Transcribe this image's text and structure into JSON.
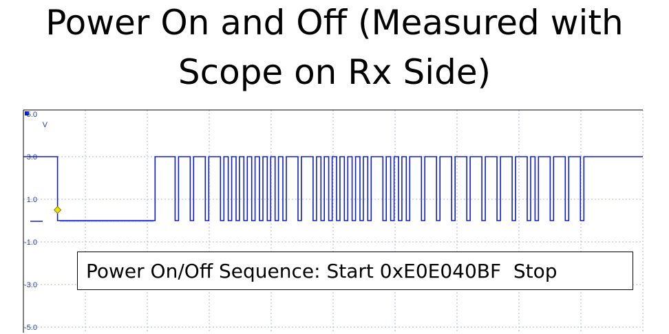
{
  "title": {
    "line1": "Power On and Off (Measured with",
    "line2": "Scope on Rx Side)"
  },
  "chart_data": {
    "type": "line",
    "title": "Power On and Off (Measured with Scope on Rx Side)",
    "ylabel_unit": "V",
    "yticks": [
      "5.0",
      "3.0",
      "1.0",
      "-1.0",
      "-3.0",
      "-5.0"
    ],
    "ylim": [
      -5.0,
      5.0
    ],
    "grid": true,
    "high_level": 3.0,
    "low_level": 0.0,
    "series": [
      {
        "color": "#0b1bd0",
        "segments_low": [
          [
            0.0,
            10.0
          ],
          [
            12.05,
            12.4
          ],
          [
            13.6,
            13.95
          ],
          [
            15.15,
            15.5
          ],
          [
            16.7,
            17.05
          ],
          [
            17.5,
            17.85
          ],
          [
            18.3,
            18.65
          ],
          [
            19.1,
            19.45
          ],
          [
            19.9,
            20.25
          ],
          [
            20.7,
            21.05
          ],
          [
            21.5,
            21.85
          ],
          [
            22.3,
            22.65
          ],
          [
            23.1,
            23.45
          ],
          [
            24.65,
            25.0
          ],
          [
            26.2,
            26.55
          ],
          [
            27.0,
            27.35
          ],
          [
            27.8,
            28.15
          ],
          [
            28.6,
            28.95
          ],
          [
            29.4,
            29.75
          ],
          [
            30.2,
            30.55
          ],
          [
            31.0,
            31.35
          ],
          [
            31.8,
            32.15
          ],
          [
            33.35,
            33.7
          ],
          [
            34.15,
            34.5
          ],
          [
            34.95,
            35.3
          ],
          [
            35.75,
            36.1
          ],
          [
            37.3,
            37.65
          ],
          [
            38.85,
            39.2
          ],
          [
            40.4,
            40.75
          ],
          [
            41.95,
            42.3
          ],
          [
            43.5,
            43.85
          ],
          [
            45.05,
            45.4
          ],
          [
            46.6,
            46.95
          ],
          [
            48.15,
            48.5
          ],
          [
            48.95,
            49.3
          ],
          [
            50.5,
            50.85
          ],
          [
            52.05,
            52.4
          ],
          [
            53.6,
            53.95
          ]
        ],
        "x_range": [
          -3.5,
          60.0
        ]
      }
    ],
    "marker": {
      "x": 0.0,
      "y": 0.5,
      "shape": "diamond",
      "color": "#f2e000"
    },
    "ground_indicator_label": "",
    "annotation": "Power On/Off Sequence: Start 0xE0E040BF  Stop"
  },
  "colors": {
    "trace": "#0b1bd0",
    "grid": "#a8b7c9",
    "axis": "#000000",
    "marker_fill": "#f2e000",
    "marker_stroke": "#8a7a00",
    "tick_text": "#2040a0"
  },
  "channel_indicator": "square-icon"
}
